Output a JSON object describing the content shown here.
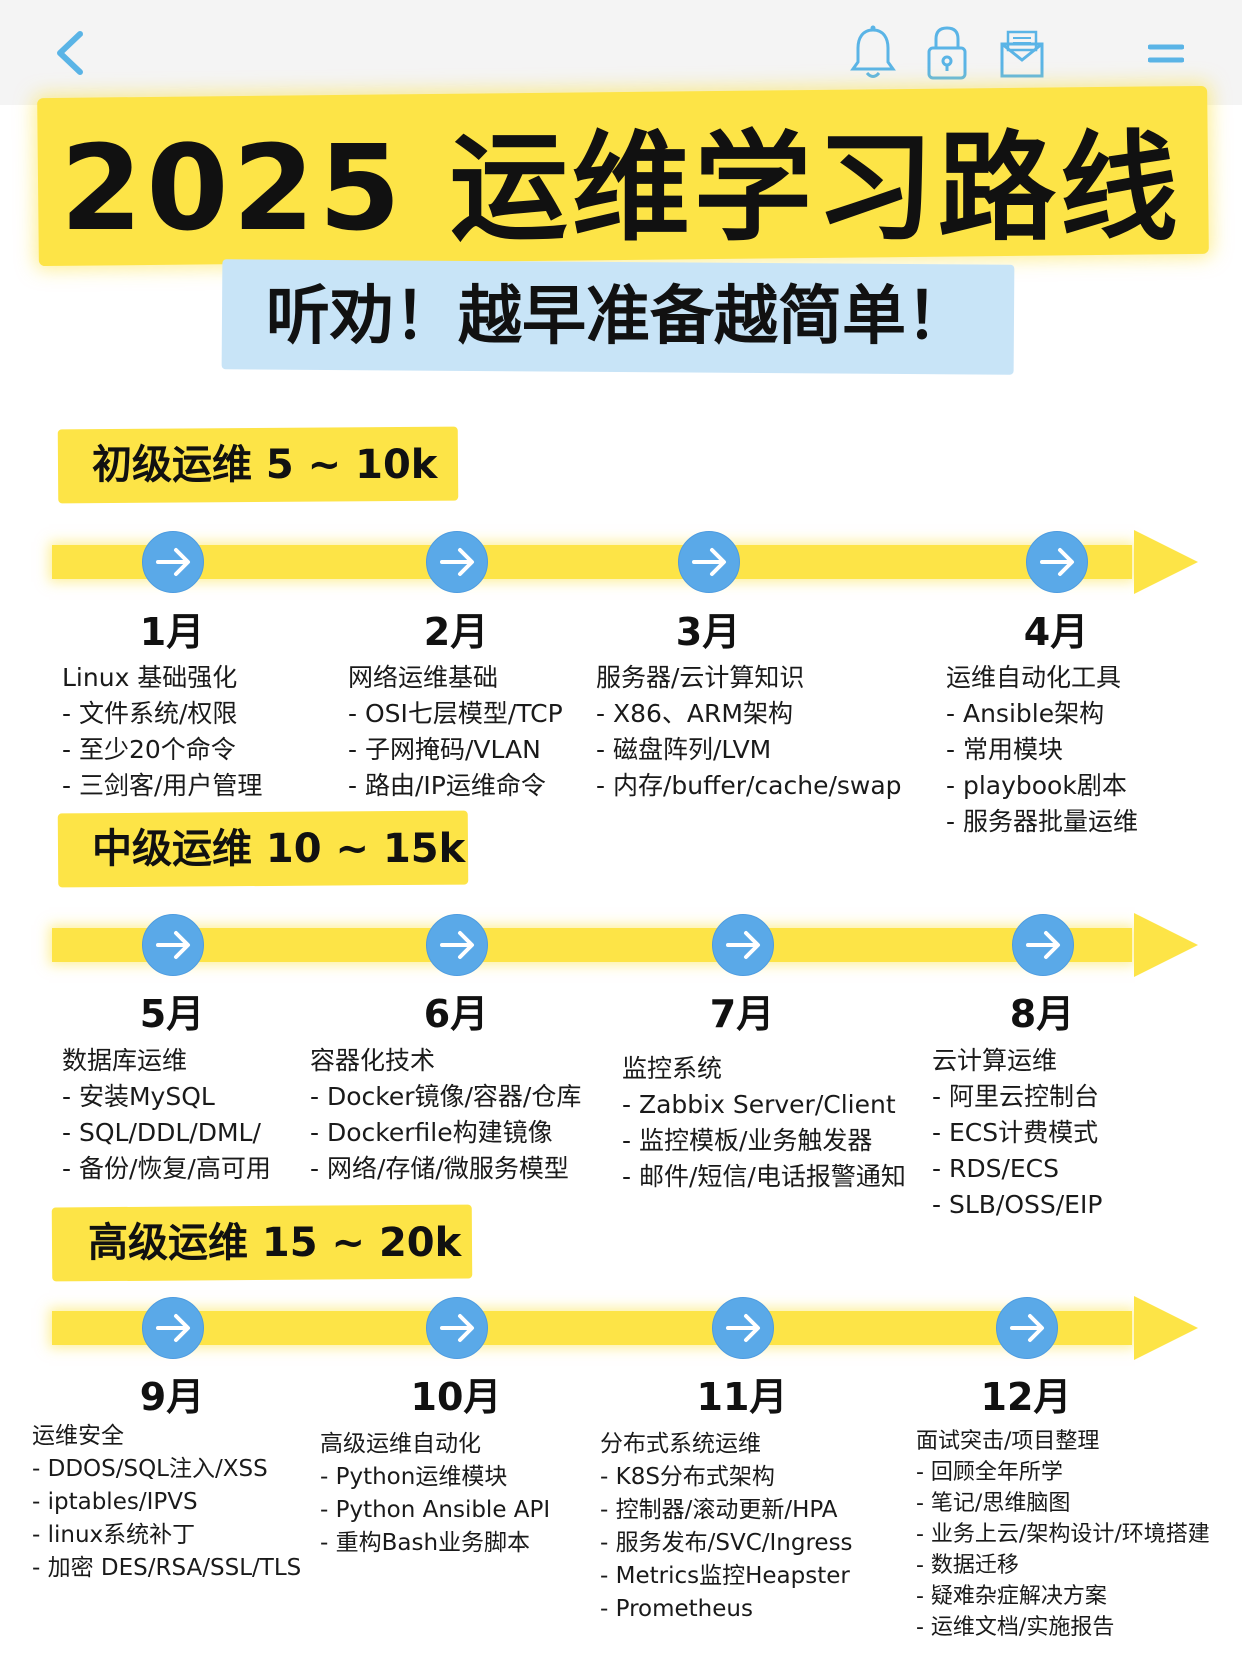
{
  "topbar": {
    "icons": [
      "back-chevron-icon",
      "bell-icon",
      "lock-icon",
      "mail-icon",
      "menu-icon"
    ],
    "accent": "#5ab4e6"
  },
  "header": {
    "title": "2025 运维学习路线",
    "subtitle": "听劝！越早准备越简单！"
  },
  "colors": {
    "highlight": "#fde447",
    "sub_highlight": "#c8e4f7",
    "node": "#5aa9e8"
  },
  "levels": [
    {
      "label": "初级运维 5 ~ 10k",
      "months": [
        {
          "month": "1月",
          "heading": "Linux 基础强化",
          "items": [
            "- 文件系统/权限",
            "- 至少20个命令",
            "- 三剑客/用户管理"
          ]
        },
        {
          "month": "2月",
          "heading": "网络运维基础",
          "items": [
            "- OSI七层模型/TCP",
            "- 子网掩码/VLAN",
            "- 路由/IP运维命令"
          ]
        },
        {
          "month": "3月",
          "heading": "服务器/云计算知识",
          "items": [
            "- X86、ARM架构",
            "- 磁盘阵列/LVM",
            "- 内存/buffer/cache/swap"
          ]
        },
        {
          "month": "4月",
          "heading": "运维自动化工具",
          "items": [
            "- Ansible架构",
            "- 常用模块",
            "- playbook剧本",
            "- 服务器批量运维"
          ]
        }
      ]
    },
    {
      "label": "中级运维 10 ~ 15k",
      "months": [
        {
          "month": "5月",
          "heading": "数据库运维",
          "items": [
            "- 安装MySQL",
            "- SQL/DDL/DML/",
            "- 备份/恢复/高可用"
          ]
        },
        {
          "month": "6月",
          "heading": "容器化技术",
          "items": [
            "- Docker镜像/容器/仓库",
            "- Dockerfile构建镜像",
            "- 网络/存储/微服务模型"
          ]
        },
        {
          "month": "7月",
          "heading": "监控系统",
          "items": [
            "- Zabbix Server/Client",
            "- 监控模板/业务触发器",
            "- 邮件/短信/电话报警通知"
          ]
        },
        {
          "month": "8月",
          "heading": "云计算运维",
          "items": [
            "- 阿里云控制台",
            "- ECS计费模式",
            "- RDS/ECS",
            "- SLB/OSS/EIP"
          ]
        }
      ]
    },
    {
      "label": "高级运维 15 ~ 20k",
      "months": [
        {
          "month": "9月",
          "heading": "运维安全",
          "items": [
            "- DDOS/SQL注入/XSS",
            "- iptables/IPVS",
            "- linux系统补丁",
            "- 加密 DES/RSA/SSL/TLS"
          ]
        },
        {
          "month": "10月",
          "heading": "高级运维自动化",
          "items": [
            "- Python运维模块",
            "- Python Ansible API",
            "- 重构Bash业务脚本"
          ]
        },
        {
          "month": "11月",
          "heading": "分布式系统运维",
          "items": [
            "- K8S分布式架构",
            "- 控制器/滚动更新/HPA",
            "- 服务发布/SVC/Ingress",
            "- Metrics监控Heapster",
            "- Prometheus"
          ]
        },
        {
          "month": "12月",
          "heading": "面试突击/项目整理",
          "items": [
            "- 回顾全年所学",
            "- 笔记/思维脑图",
            "- 业务上云/架构设计/环境搭建",
            "- 数据迁移",
            "- 疑难杂症解决方案",
            "- 运维文档/实施报告"
          ]
        }
      ]
    }
  ]
}
